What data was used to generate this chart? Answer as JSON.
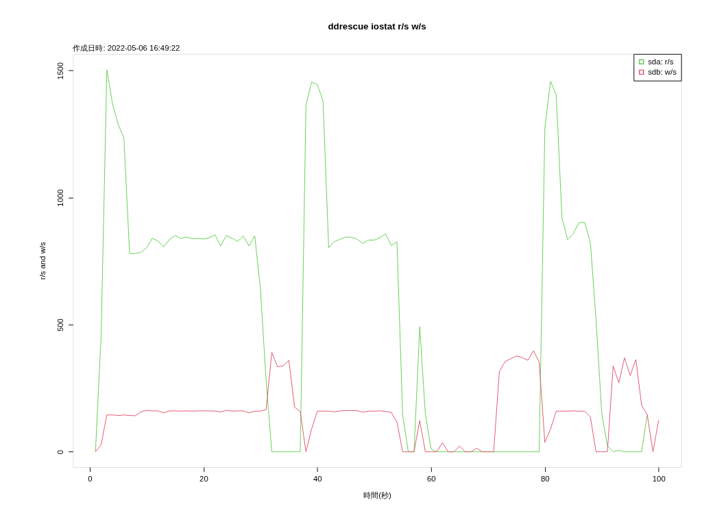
{
  "chart_data": {
    "type": "line",
    "title": "ddrescue iostat r/s w/s",
    "subtitle": "作成日時: 2022-05-06 16:49:22",
    "xlabel": "時間(秒)",
    "ylabel": "r/s and w/s",
    "x": [
      1,
      2,
      3,
      4,
      5,
      6,
      7,
      8,
      9,
      10,
      11,
      12,
      13,
      14,
      15,
      16,
      17,
      18,
      19,
      20,
      21,
      22,
      23,
      24,
      25,
      26,
      27,
      28,
      29,
      30,
      31,
      32,
      33,
      34,
      35,
      36,
      37,
      38,
      39,
      40,
      41,
      42,
      43,
      44,
      45,
      46,
      47,
      48,
      49,
      50,
      51,
      52,
      53,
      54,
      55,
      56,
      57,
      58,
      59,
      60,
      61,
      62,
      63,
      64,
      65,
      66,
      67,
      68,
      69,
      70,
      71,
      72,
      73,
      74,
      75,
      76,
      77,
      78,
      79,
      80,
      81,
      82,
      83,
      84,
      85,
      86,
      87,
      88,
      89,
      90,
      91,
      92,
      93,
      94,
      95,
      96,
      97,
      98,
      99,
      100
    ],
    "series": [
      {
        "name": "sda: r/s",
        "color": "#61d04f",
        "values": [
          0,
          460,
          1503,
          1369,
          1288,
          1234,
          780,
          780,
          785,
          803,
          840,
          829,
          806,
          835,
          851,
          839,
          845,
          838,
          840,
          837,
          842,
          854,
          810,
          851,
          840,
          828,
          849,
          810,
          850,
          640,
          280,
          0,
          0,
          0,
          0,
          0,
          0,
          1364,
          1455,
          1445,
          1381,
          803,
          827,
          836,
          845,
          844,
          836,
          820,
          833,
          833,
          842,
          857,
          812,
          826,
          146,
          0,
          0,
          492,
          146,
          11,
          0,
          0,
          0,
          0,
          0,
          0,
          0,
          0,
          0,
          0,
          0,
          0,
          0,
          0,
          0,
          0,
          0,
          0,
          0,
          1273,
          1458,
          1404,
          922,
          835,
          858,
          902,
          902,
          823,
          520,
          151,
          24,
          0,
          6,
          0,
          0,
          0,
          0,
          146,
          null,
          null
        ]
      },
      {
        "name": "sdb: w/s",
        "color": "#df536b",
        "values": [
          0,
          28,
          145,
          145,
          143,
          145,
          143,
          142,
          157,
          163,
          161,
          161,
          153,
          161,
          161,
          160,
          161,
          160,
          161,
          161,
          161,
          160,
          157,
          163,
          160,
          161,
          161,
          153,
          160,
          160,
          166,
          391,
          335,
          338,
          360,
          176,
          158,
          0,
          90,
          160,
          160,
          160,
          157,
          161,
          162,
          162,
          162,
          156,
          160,
          160,
          161,
          159,
          155,
          117,
          0,
          0,
          0,
          123,
          0,
          0,
          0,
          36,
          0,
          0,
          23,
          0,
          0,
          14,
          0,
          0,
          0,
          315,
          355,
          366,
          377,
          371,
          360,
          397,
          353,
          37,
          90,
          160,
          160,
          160,
          161,
          160,
          160,
          137,
          0,
          0,
          0,
          338,
          271,
          370,
          300,
          363,
          184,
          146,
          0,
          125
        ]
      }
    ],
    "xlim": [
      -2.96,
      103.96
    ],
    "ylim": [
      -60.2,
      1565.2
    ],
    "xticks": [
      0,
      20,
      40,
      60,
      80,
      100
    ],
    "yticks": [
      0,
      500,
      1000,
      1500
    ],
    "legend": "top right",
    "grid": false
  }
}
